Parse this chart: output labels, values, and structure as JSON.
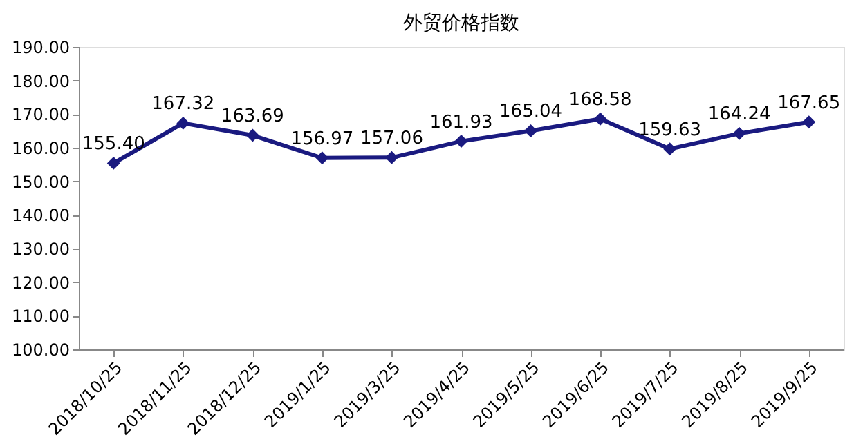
{
  "chart_data": {
    "type": "line",
    "title": "外贸价格指数",
    "categories": [
      "2018/10/25",
      "2018/11/25",
      "2018/12/25",
      "2019/1/25",
      "2019/3/25",
      "2019/4/25",
      "2019/5/25",
      "2019/6/25",
      "2019/7/25",
      "2019/8/25",
      "2019/9/25"
    ],
    "series": [
      {
        "color": "#1a1a80",
        "values": [
          155.4,
          167.32,
          163.69,
          156.97,
          157.06,
          161.93,
          165.04,
          168.58,
          159.63,
          164.24,
          167.65
        ]
      }
    ],
    "ylim": [
      100,
      190
    ],
    "yticks": [
      {
        "value": 100,
        "label": "100.00"
      },
      {
        "value": 110,
        "label": "110.00"
      },
      {
        "value": 120,
        "label": "120.00"
      },
      {
        "value": 130,
        "label": "130.00"
      },
      {
        "value": 140,
        "label": "140.00"
      },
      {
        "value": 150,
        "label": "150.00"
      },
      {
        "value": 160,
        "label": "160.00"
      },
      {
        "value": 170,
        "label": "170.00"
      },
      {
        "value": 180,
        "label": "180.00"
      },
      {
        "value": 190,
        "label": "190.00"
      }
    ],
    "value_labels": [
      "155.40",
      "167.32",
      "163.69",
      "156.97",
      "157.06",
      "161.93",
      "165.04",
      "168.58",
      "159.63",
      "164.24",
      "167.65"
    ],
    "marker": "diamond",
    "line_style": "solid",
    "grid": false
  }
}
